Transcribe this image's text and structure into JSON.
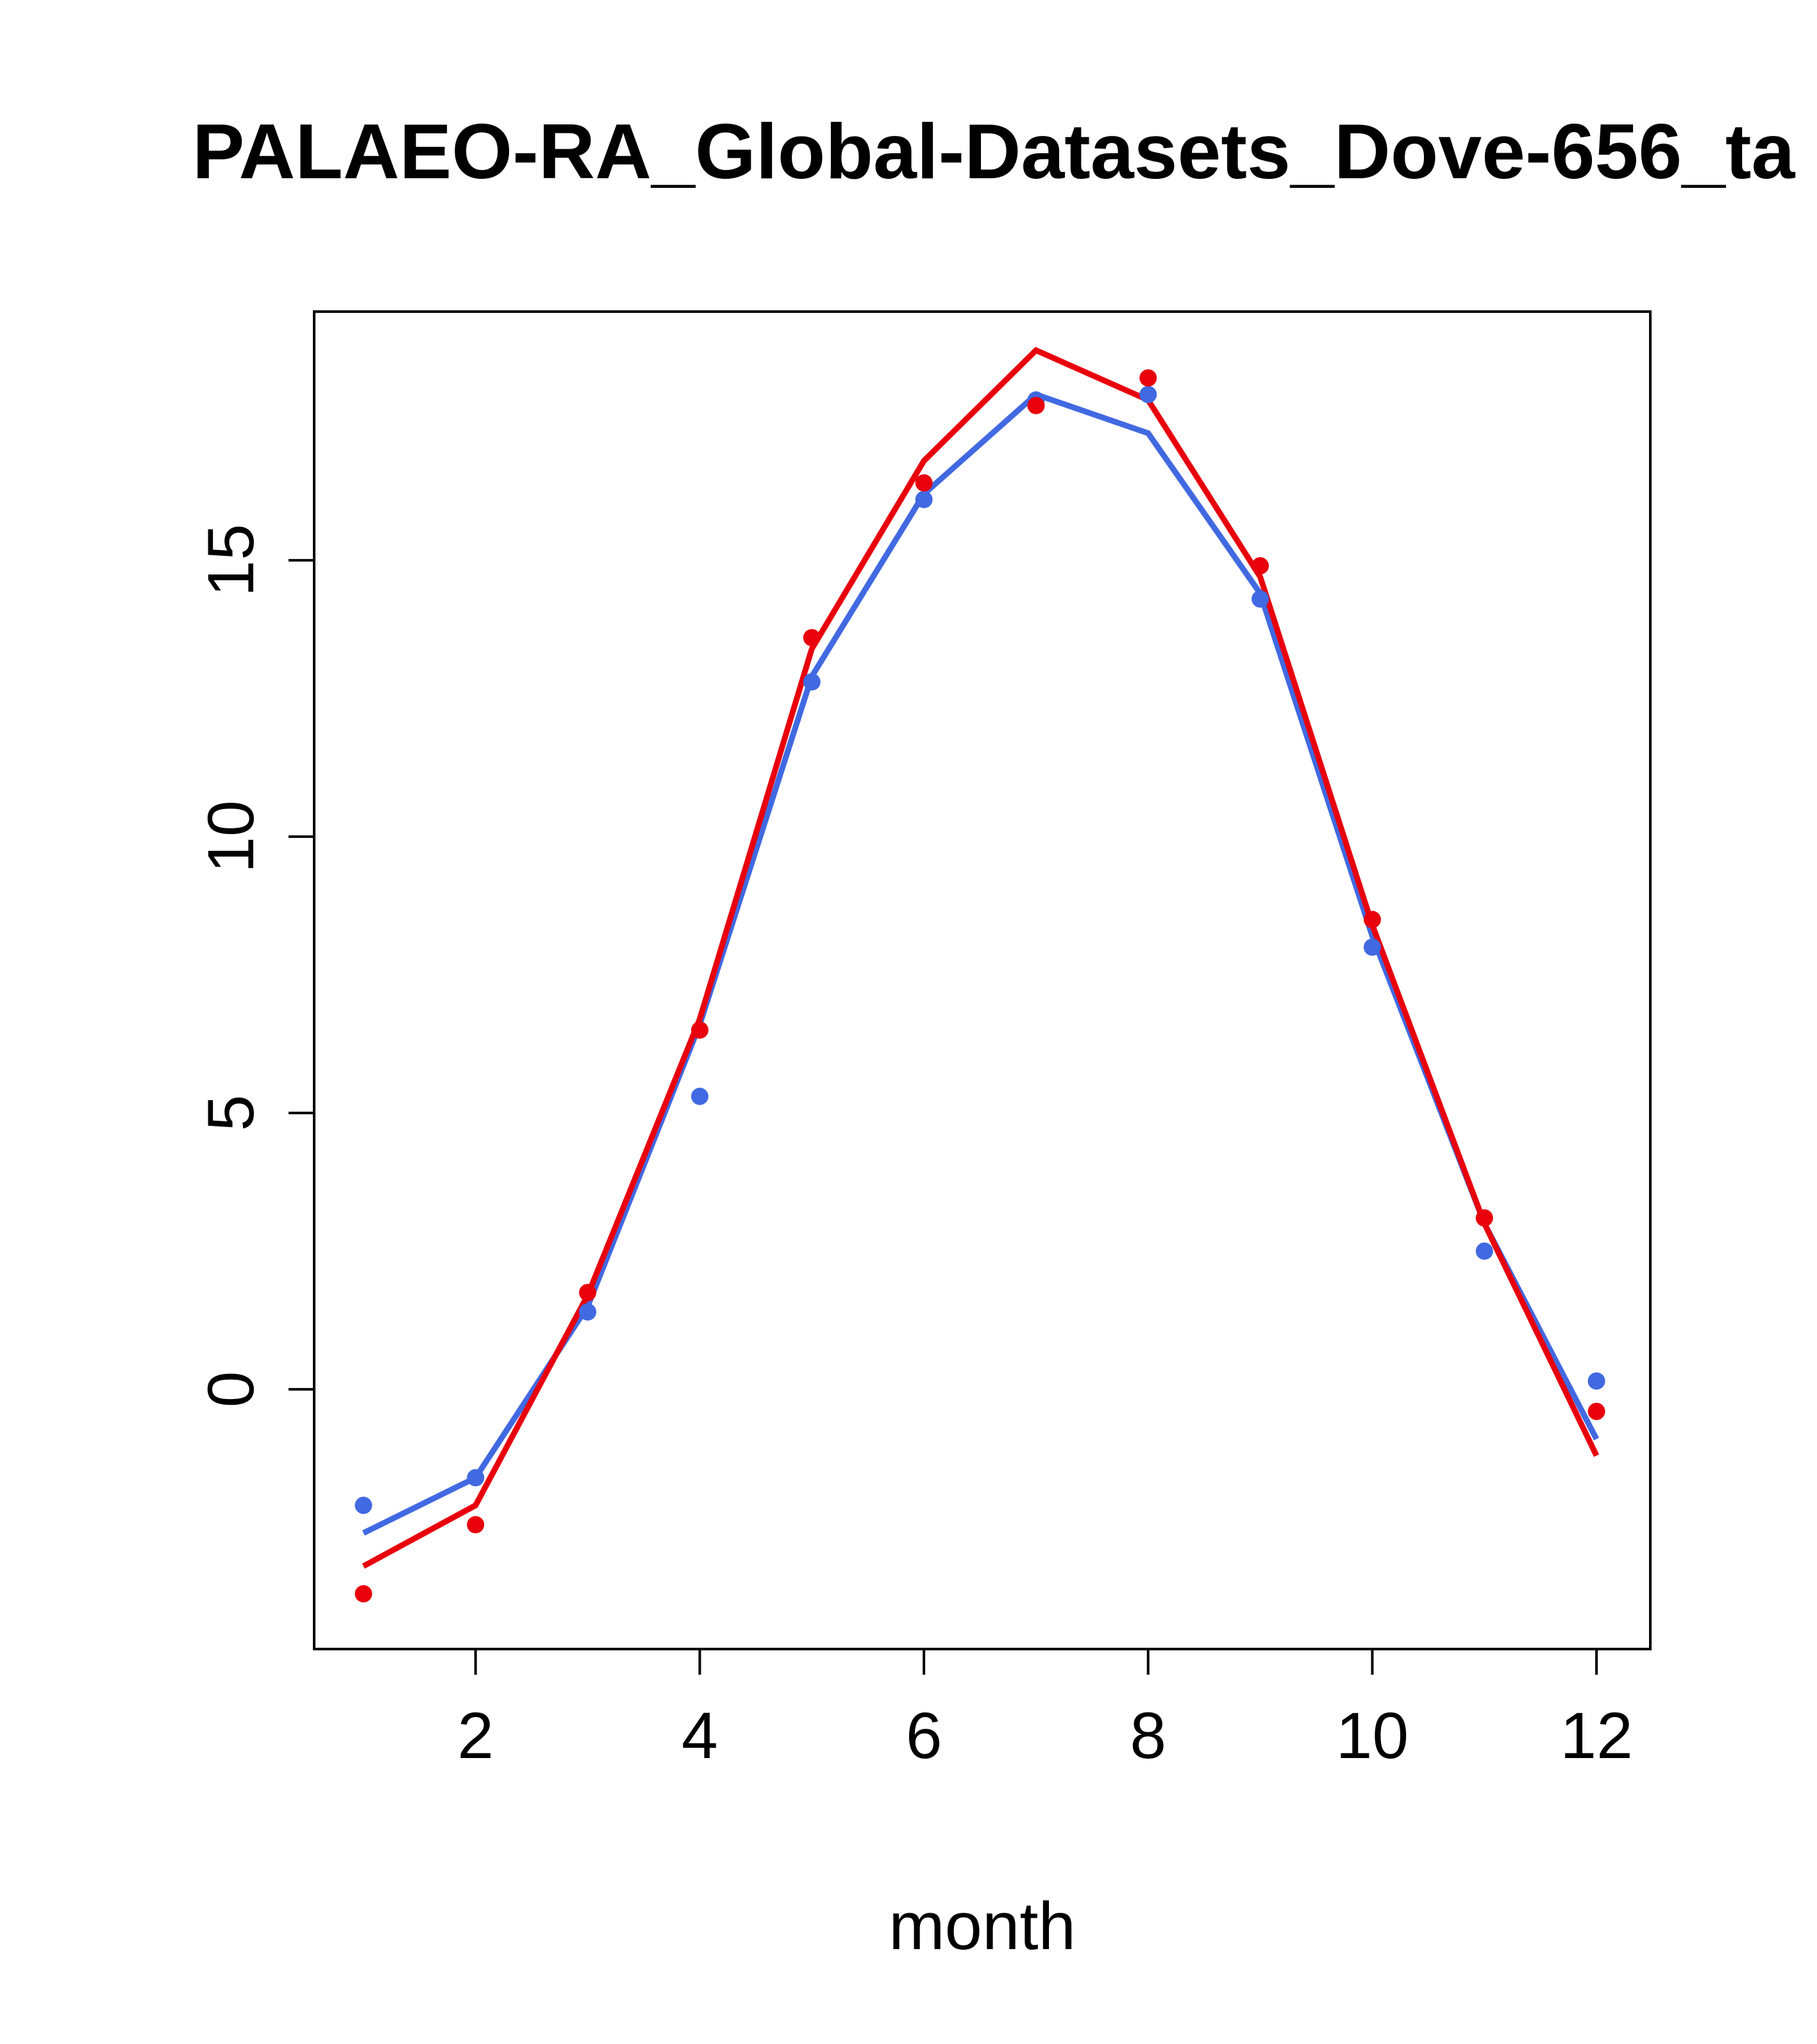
{
  "title": "PALAEO-RA_Global-Datasets_Dove-656_ta",
  "colors": {
    "red_series": "#e8000d",
    "blue_series": "#4169E1",
    "axis": "#000000",
    "background": "#ffffff"
  },
  "chart_data": {
    "type": "line",
    "title": "PALAEO-RA_Global-Datasets_Dove-656_ta",
    "xlabel": "month",
    "ylabel": "",
    "x": [
      1,
      2,
      3,
      4,
      5,
      6,
      7,
      8,
      9,
      10,
      11,
      12
    ],
    "xlim": [
      0.56,
      12.48
    ],
    "ylim": [
      -4.7,
      19.5
    ],
    "x_ticks": [
      2,
      4,
      6,
      8,
      10,
      12
    ],
    "y_ticks": [
      0,
      5,
      10,
      15
    ],
    "grid": false,
    "legend": "none",
    "series": [
      {
        "name": "blue-line",
        "type": "line",
        "color": "#4169E1",
        "values": [
          -2.6,
          -1.6,
          1.5,
          6.6,
          12.9,
          16.2,
          18.0,
          17.3,
          14.4,
          8.2,
          3.0,
          -0.9
        ]
      },
      {
        "name": "red-line",
        "type": "line",
        "color": "#e8000d",
        "values": [
          -3.2,
          -2.1,
          1.7,
          6.7,
          13.4,
          16.8,
          18.8,
          17.9,
          14.7,
          8.4,
          3.0,
          -1.2
        ]
      },
      {
        "name": "blue-points",
        "type": "scatter",
        "color": "#4169E1",
        "values": [
          -2.1,
          -1.6,
          1.4,
          5.3,
          12.8,
          16.1,
          17.9,
          18.0,
          14.3,
          8.0,
          2.5,
          0.15
        ]
      },
      {
        "name": "red-points",
        "type": "scatter",
        "color": "#e8000d",
        "values": [
          -3.7,
          -2.45,
          1.75,
          6.5,
          13.6,
          16.4,
          17.8,
          18.3,
          14.9,
          8.5,
          3.1,
          -0.4
        ]
      }
    ]
  }
}
